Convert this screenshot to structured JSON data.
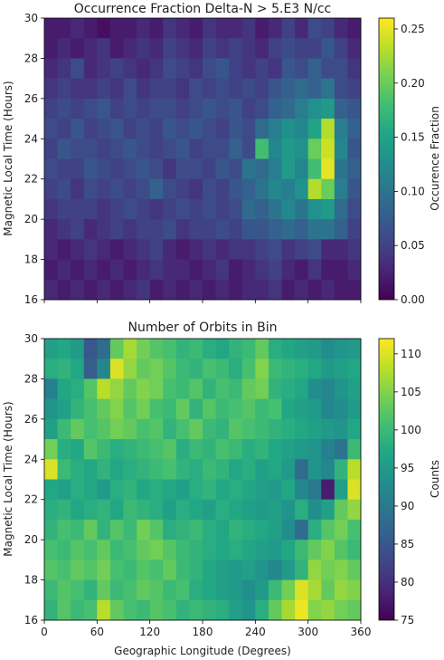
{
  "chart_data": [
    {
      "type": "heatmap",
      "title": "Occurrence Fraction Delta-N > 5.E3 N/cc",
      "ylabel": "Magnetic Local Time (Hours)",
      "xlabel": "",
      "xlim": [
        0,
        360
      ],
      "ylim": [
        16,
        30
      ],
      "x_bin_width": 15,
      "y_bin_width": 1,
      "yticks": [
        "16",
        "18",
        "20",
        "22",
        "24",
        "26",
        "28",
        "30"
      ],
      "xticks_labeled": false,
      "colorbar": {
        "label": "Occurence Fraction",
        "colormap": "viridis",
        "range": [
          0,
          0.26
        ],
        "ticks": [
          "0.00",
          "0.05",
          "0.10",
          "0.15",
          "0.20",
          "0.25"
        ]
      },
      "values_rows_top_to_bottom_note": "rows MLT 29-30 down to 16-17; columns longitude 0-15 ... 345-360",
      "values": [
        [
          0.02,
          0.02,
          0.03,
          0.02,
          0.01,
          0.02,
          0.02,
          0.03,
          0.02,
          0.04,
          0.03,
          0.02,
          0.04,
          0.03,
          0.03,
          0.04,
          0.02,
          0.03,
          0.05,
          0.03,
          0.06,
          0.05,
          0.03,
          0.02
        ],
        [
          0.02,
          0.03,
          0.02,
          0.03,
          0.04,
          0.02,
          0.03,
          0.04,
          0.03,
          0.05,
          0.04,
          0.03,
          0.05,
          0.04,
          0.05,
          0.04,
          0.03,
          0.05,
          0.06,
          0.05,
          0.05,
          0.07,
          0.05,
          0.03
        ],
        [
          0.03,
          0.04,
          0.06,
          0.03,
          0.04,
          0.05,
          0.04,
          0.03,
          0.04,
          0.06,
          0.05,
          0.04,
          0.06,
          0.07,
          0.05,
          0.04,
          0.05,
          0.04,
          0.07,
          0.06,
          0.08,
          0.06,
          0.06,
          0.04
        ],
        [
          0.04,
          0.05,
          0.04,
          0.04,
          0.05,
          0.04,
          0.06,
          0.04,
          0.05,
          0.05,
          0.04,
          0.06,
          0.05,
          0.06,
          0.05,
          0.06,
          0.05,
          0.07,
          0.08,
          0.09,
          0.08,
          0.1,
          0.06,
          0.05
        ],
        [
          0.05,
          0.06,
          0.05,
          0.06,
          0.07,
          0.05,
          0.06,
          0.05,
          0.06,
          0.06,
          0.05,
          0.06,
          0.07,
          0.06,
          0.07,
          0.05,
          0.06,
          0.08,
          0.09,
          0.11,
          0.13,
          0.14,
          0.08,
          0.07
        ],
        [
          0.06,
          0.05,
          0.07,
          0.05,
          0.06,
          0.07,
          0.05,
          0.06,
          0.05,
          0.07,
          0.06,
          0.07,
          0.06,
          0.05,
          0.07,
          0.06,
          0.09,
          0.11,
          0.13,
          0.12,
          0.15,
          0.23,
          0.11,
          0.08
        ],
        [
          0.05,
          0.07,
          0.06,
          0.06,
          0.05,
          0.06,
          0.07,
          0.06,
          0.05,
          0.06,
          0.07,
          0.05,
          0.06,
          0.06,
          0.08,
          0.06,
          0.18,
          0.12,
          0.14,
          0.13,
          0.2,
          0.24,
          0.12,
          0.07
        ],
        [
          0.06,
          0.05,
          0.05,
          0.07,
          0.06,
          0.05,
          0.06,
          0.07,
          0.06,
          0.04,
          0.06,
          0.06,
          0.05,
          0.07,
          0.06,
          0.1,
          0.09,
          0.11,
          0.14,
          0.12,
          0.18,
          0.25,
          0.1,
          0.08
        ],
        [
          0.05,
          0.06,
          0.04,
          0.06,
          0.05,
          0.06,
          0.05,
          0.06,
          0.08,
          0.06,
          0.05,
          0.04,
          0.06,
          0.05,
          0.07,
          0.08,
          0.1,
          0.12,
          0.11,
          0.13,
          0.23,
          0.2,
          0.11,
          0.07
        ],
        [
          0.04,
          0.05,
          0.05,
          0.05,
          0.04,
          0.05,
          0.06,
          0.05,
          0.04,
          0.05,
          0.06,
          0.05,
          0.06,
          0.05,
          0.06,
          0.09,
          0.08,
          0.1,
          0.12,
          0.1,
          0.13,
          0.14,
          0.09,
          0.06
        ],
        [
          0.03,
          0.04,
          0.05,
          0.03,
          0.04,
          0.05,
          0.04,
          0.05,
          0.05,
          0.06,
          0.04,
          0.05,
          0.05,
          0.06,
          0.05,
          0.07,
          0.07,
          0.08,
          0.09,
          0.08,
          0.1,
          0.1,
          0.08,
          0.05
        ],
        [
          0.03,
          0.02,
          0.03,
          0.04,
          0.03,
          0.02,
          0.03,
          0.04,
          0.05,
          0.03,
          0.02,
          0.03,
          0.04,
          0.03,
          0.04,
          0.04,
          0.05,
          0.06,
          0.04,
          0.05,
          0.06,
          0.03,
          0.03,
          0.04
        ],
        [
          0.02,
          0.03,
          0.02,
          0.03,
          0.02,
          0.03,
          0.02,
          0.03,
          0.04,
          0.03,
          0.03,
          0.02,
          0.03,
          0.04,
          0.02,
          0.03,
          0.04,
          0.05,
          0.03,
          0.02,
          0.04,
          0.02,
          0.02,
          0.03
        ],
        [
          0.03,
          0.02,
          0.03,
          0.02,
          0.03,
          0.02,
          0.03,
          0.04,
          0.02,
          0.03,
          0.02,
          0.03,
          0.02,
          0.03,
          0.02,
          0.03,
          0.03,
          0.04,
          0.02,
          0.03,
          0.02,
          0.03,
          0.02,
          0.02
        ]
      ]
    },
    {
      "type": "heatmap",
      "title": "Number of Orbits in Bin",
      "ylabel": "Magnetic Local Time (Hours)",
      "xlabel": "Geographic Longitude (Degrees)",
      "xlim": [
        0,
        360
      ],
      "ylim": [
        16,
        30
      ],
      "x_bin_width": 15,
      "y_bin_width": 1,
      "xticks": [
        "0",
        "60",
        "120",
        "180",
        "240",
        "300",
        "360"
      ],
      "yticks": [
        "16",
        "18",
        "20",
        "22",
        "24",
        "26",
        "28",
        "30"
      ],
      "colorbar": {
        "label": "Counts",
        "colormap": "viridis",
        "range": [
          75,
          112
        ],
        "ticks": [
          "75",
          "80",
          "85",
          "90",
          "95",
          "100",
          "105",
          "110"
        ]
      },
      "values_rows_top_to_bottom_note": "rows MLT 29-30 down to 16-17; columns longitude 0-15 ... 345-360",
      "values": [
        [
          96,
          97,
          95,
          85,
          88,
          103,
          107,
          104,
          102,
          101,
          99,
          100,
          98,
          97,
          99,
          100,
          103,
          98,
          97,
          96,
          95,
          93,
          94,
          95
        ],
        [
          98,
          99,
          97,
          86,
          92,
          110,
          106,
          103,
          104,
          102,
          100,
          99,
          101,
          100,
          98,
          101,
          105,
          100,
          99,
          98,
          97,
          95,
          96,
          97
        ],
        [
          91,
          97,
          98,
          102,
          108,
          106,
          103,
          105,
          104,
          101,
          100,
          102,
          99,
          101,
          100,
          103,
          104,
          99,
          98,
          97,
          93,
          92,
          94,
          96
        ],
        [
          94,
          96,
          99,
          101,
          103,
          105,
          102,
          104,
          101,
          100,
          103,
          99,
          102,
          100,
          101,
          102,
          100,
          101,
          97,
          96,
          95,
          92,
          93,
          95
        ],
        [
          96,
          100,
          103,
          101,
          102,
          104,
          103,
          101,
          102,
          99,
          101,
          103,
          100,
          99,
          102,
          101,
          100,
          99,
          98,
          97,
          96,
          95,
          94,
          97
        ],
        [
          104,
          98,
          97,
          102,
          100,
          98,
          99,
          100,
          101,
          102,
          98,
          100,
          99,
          101,
          100,
          98,
          99,
          97,
          96,
          95,
          94,
          91,
          89,
          100
        ],
        [
          110,
          100,
          98,
          97,
          99,
          97,
          98,
          99,
          100,
          101,
          99,
          98,
          100,
          99,
          97,
          98,
          96,
          97,
          95,
          88,
          94,
          92,
          99,
          108
        ],
        [
          97,
          96,
          98,
          97,
          95,
          98,
          99,
          97,
          98,
          97,
          96,
          98,
          99,
          97,
          98,
          97,
          96,
          95,
          97,
          92,
          90,
          78,
          96,
          110
        ],
        [
          98,
          99,
          97,
          98,
          99,
          97,
          100,
          99,
          98,
          96,
          98,
          97,
          96,
          98,
          97,
          96,
          95,
          96,
          94,
          98,
          93,
          96,
          103,
          106
        ],
        [
          99,
          101,
          100,
          103,
          99,
          102,
          100,
          104,
          102,
          98,
          99,
          100,
          98,
          97,
          99,
          98,
          97,
          96,
          93,
          88,
          98,
          102,
          104,
          101
        ],
        [
          101,
          100,
          102,
          101,
          103,
          100,
          101,
          103,
          104,
          102,
          100,
          99,
          98,
          97,
          98,
          97,
          96,
          95,
          97,
          100,
          103,
          105,
          102,
          100
        ],
        [
          102,
          101,
          103,
          102,
          104,
          101,
          100,
          102,
          101,
          103,
          100,
          99,
          97,
          96,
          95,
          96,
          94,
          92,
          95,
          99,
          106,
          104,
          105,
          103
        ],
        [
          100,
          102,
          101,
          99,
          103,
          100,
          101,
          103,
          102,
          100,
          101,
          98,
          97,
          96,
          95,
          93,
          95,
          100,
          104,
          110,
          107,
          103,
          106,
          105
        ],
        [
          99,
          102,
          100,
          101,
          108,
          103,
          101,
          100,
          102,
          101,
          99,
          100,
          99,
          98,
          96,
          94,
          98,
          103,
          107,
          111,
          105,
          106,
          104,
          103
        ]
      ]
    }
  ]
}
